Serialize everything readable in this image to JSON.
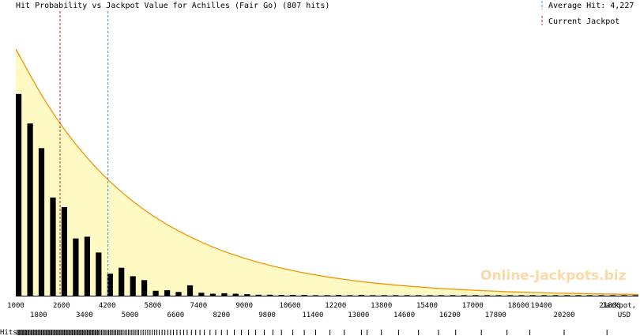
{
  "chart_data": {
    "type": "bar",
    "title": "Hit Probability vs Jackpot Value for Achilles (Fair Go) (807 hits)",
    "xlabel": "Jackpot,",
    "xlabel_unit": "USD",
    "rug_label": "Hits",
    "watermark": "Online-Jackpots.biz",
    "xlim": [
      1000,
      22800
    ],
    "ylim": [
      0,
      1
    ],
    "bar_width": 200,
    "bars": {
      "x": [
        1100,
        1500,
        1900,
        2300,
        2700,
        3100,
        3500,
        3900,
        4300,
        4700,
        5100,
        5500,
        5900,
        6300,
        6700,
        7100,
        7500,
        7900,
        8300,
        8700,
        9100,
        9500,
        9900,
        10300,
        10700,
        11100,
        11500,
        11900,
        12300,
        12700,
        13100,
        13500,
        13900,
        14300,
        14700,
        15100,
        15500,
        15900,
        16300,
        16700,
        17100,
        17500,
        17900,
        18300,
        18700,
        19100,
        19500,
        19900,
        20300,
        20700,
        21100,
        21500,
        21900,
        22300,
        22700
      ],
      "values": [
        0.818,
        0.698,
        0.598,
        0.398,
        0.359,
        0.232,
        0.239,
        0.175,
        0.089,
        0.113,
        0.079,
        0.063,
        0.02,
        0.022,
        0.015,
        0.042,
        0.012,
        0.008,
        0.01,
        0.008,
        0.006,
        0.004,
        0.004,
        0.003,
        0.003,
        0.003,
        0.002,
        0.002,
        0.003,
        0.002,
        0.003,
        0.002,
        0.002,
        0.002,
        0.002,
        0.002,
        0.002,
        0.002,
        0.002,
        0.002,
        0.002,
        0.002,
        0.002,
        0.002,
        0.002,
        0.002,
        0.002,
        0.002,
        0.002,
        0.002,
        0.002,
        0.002,
        0.002,
        0.002,
        0.002
      ]
    },
    "curve": {
      "x": [
        1000,
        2000,
        3000,
        4000,
        5000,
        6000,
        7000,
        8000,
        9000,
        10000,
        11000,
        12000,
        13000,
        14000,
        15000,
        16000,
        17000,
        18000,
        19000,
        20000,
        21000,
        22000,
        22800
      ],
      "values": [
        1.0,
        0.79,
        0.624,
        0.493,
        0.389,
        0.307,
        0.243,
        0.191,
        0.151,
        0.119,
        0.094,
        0.074,
        0.058,
        0.046,
        0.036,
        0.028,
        0.022,
        0.017,
        0.013,
        0.01,
        0.008,
        0.006,
        0.005
      ]
    },
    "average_hit": 4227,
    "current_jackpot": 2550,
    "legend": {
      "average_label": "Average Hit: 4,227",
      "current_label": "Current Jackpot",
      "placement": "top-right"
    },
    "x_ticks_top": [
      "1000",
      "2600",
      "4200",
      "5800",
      "7400",
      "9000",
      "10600",
      "12200",
      "13800",
      "15400",
      "17000",
      "18600",
      "19400",
      "21800"
    ],
    "x_ticks_top_values": [
      1000,
      2600,
      4200,
      5800,
      7400,
      9000,
      10600,
      12200,
      13800,
      15400,
      17000,
      18600,
      19400,
      21800
    ],
    "x_ticks_bottom": [
      "1800",
      "3400",
      "5000",
      "6600",
      "8200",
      "9800",
      "11400",
      "13000",
      "14600",
      "16200",
      "17800",
      "20200"
    ],
    "x_ticks_bottom_values": [
      1800,
      3400,
      5000,
      6600,
      8200,
      9800,
      11400,
      13000,
      14600,
      16200,
      17800,
      20200
    ],
    "colors": {
      "fill": "#fff9c4",
      "curve": "#f0960a",
      "bar": "#000000",
      "current_line": "#cc2222",
      "average_line": "#3a8fd8",
      "axis": "#000000"
    },
    "rug_hits": [
      1050,
      1090,
      1130,
      1160,
      1200,
      1240,
      1270,
      1310,
      1350,
      1380,
      1420,
      1460,
      1500,
      1540,
      1580,
      1620,
      1660,
      1700,
      1740,
      1780,
      1820,
      1860,
      1900,
      1940,
      1980,
      2020,
      2060,
      2100,
      2140,
      2180,
      2220,
      2260,
      2300,
      2340,
      2380,
      2420,
      2460,
      2500,
      2540,
      2580,
      2620,
      2660,
      2700,
      2740,
      2780,
      2820,
      2860,
      2900,
      2940,
      2980,
      3020,
      3060,
      3100,
      3140,
      3180,
      3220,
      3260,
      3300,
      3340,
      3380,
      3420,
      3460,
      3500,
      3540,
      3580,
      3620,
      3660,
      3700,
      3740,
      3780,
      3820,
      3860,
      3900,
      3950,
      4000,
      4050,
      4100,
      4150,
      4200,
      4250,
      4300,
      4350,
      4400,
      4450,
      4500,
      4550,
      4600,
      4650,
      4700,
      4760,
      4820,
      4880,
      4940,
      5000,
      5060,
      5120,
      5180,
      5240,
      5300,
      5380,
      5460,
      5540,
      5620,
      5700,
      5780,
      5860,
      5940,
      6020,
      6120,
      6220,
      6320,
      6420,
      6520,
      6640,
      6760,
      6880,
      7000,
      7150,
      7300,
      7450,
      7600,
      7800,
      8000,
      8200,
      8400,
      8650,
      8900,
      9150,
      9400,
      9700,
      10000,
      10300,
      10700,
      11100,
      11500,
      12000,
      12500,
      13100,
      13300,
      13800,
      14400,
      15100,
      15800,
      16400,
      17300,
      18200,
      19000,
      20200,
      21700
    ]
  }
}
